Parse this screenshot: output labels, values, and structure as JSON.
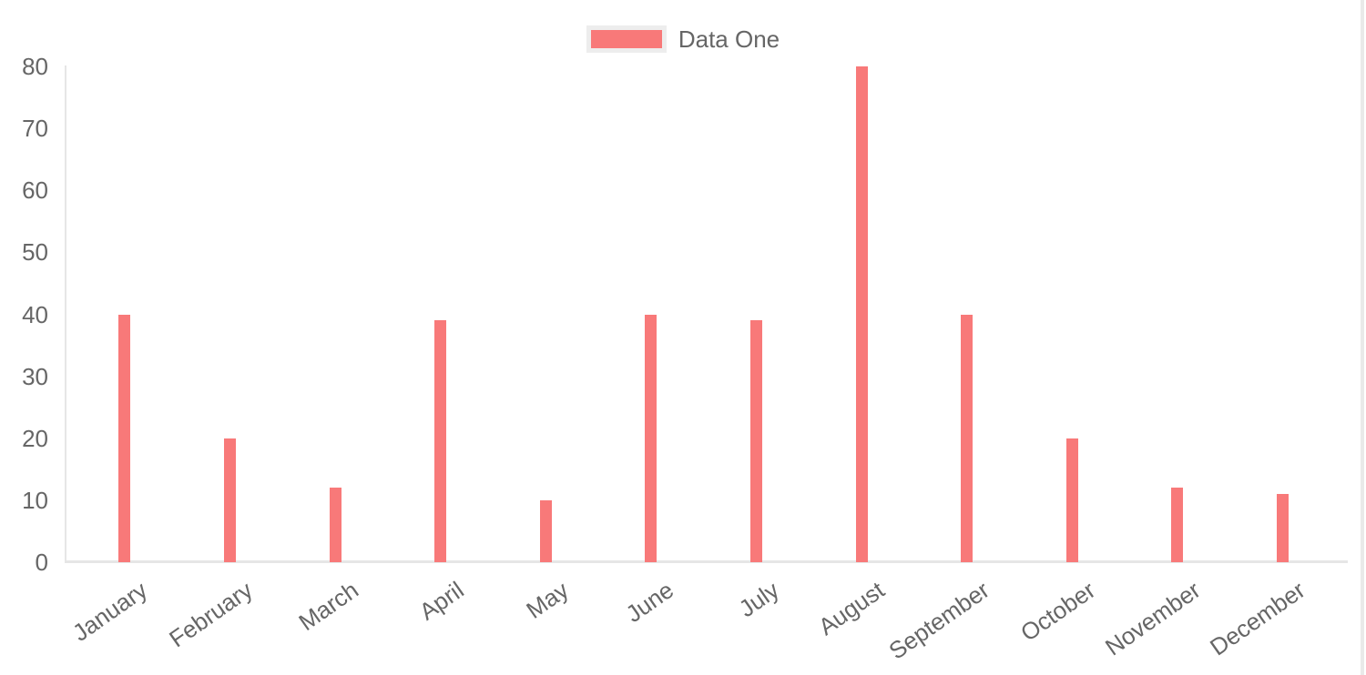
{
  "chart_data": {
    "type": "bar",
    "title": "",
    "xlabel": "",
    "ylabel": "",
    "categories": [
      "January",
      "February",
      "March",
      "April",
      "May",
      "June",
      "July",
      "August",
      "September",
      "October",
      "November",
      "December"
    ],
    "series": [
      {
        "name": "Data One",
        "color": "#f87979",
        "values": [
          40,
          20,
          12,
          39,
          10,
          40,
          39,
          80,
          40,
          20,
          12,
          11
        ]
      }
    ],
    "ylim": [
      0,
      80
    ],
    "y_ticks": [
      0,
      10,
      20,
      30,
      40,
      50,
      60,
      70,
      80
    ],
    "grid": "off",
    "legend_position": "top",
    "x_label_rotation_deg": -35,
    "axis_line_color": "#e6e6e6",
    "tick_label_color": "#666666"
  },
  "legend": {
    "label": "Data One",
    "swatch_color": "#f87979",
    "swatch_border_color": "#ededed"
  }
}
